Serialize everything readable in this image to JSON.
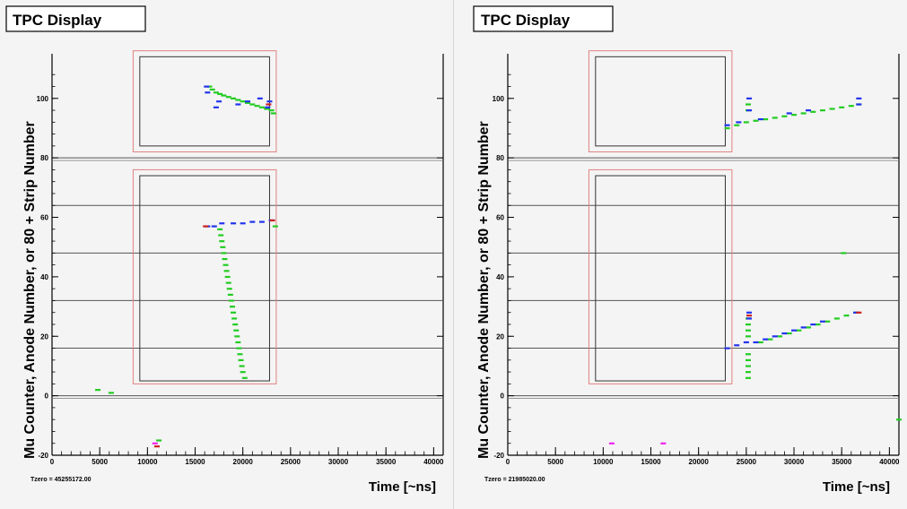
{
  "chart_data": [
    {
      "type": "scatter",
      "title": "TPC Display",
      "xlabel": "Time [~ns]",
      "ylabel": "Mu Counter, Anode Number, or 80 + Strip Number",
      "xlim": [
        0,
        41000
      ],
      "ylim": [
        -20,
        115
      ],
      "x_ticks": [
        0,
        5000,
        10000,
        15000,
        20000,
        25000,
        30000,
        35000,
        40000
      ],
      "y_ticks": [
        -20,
        0,
        20,
        40,
        60,
        80,
        100
      ],
      "reference_lines_y": [
        0,
        16,
        32,
        48,
        64,
        80
      ],
      "tzero_label": "Tzero = 45255172.00",
      "series": [
        {
          "color": "#22cc22",
          "points": [
            [
              4800,
              2
            ],
            [
              6200,
              1
            ],
            [
              11200,
              -15
            ],
            [
              20200,
              6
            ],
            [
              20000,
              8
            ],
            [
              19900,
              10
            ],
            [
              19800,
              12
            ],
            [
              19700,
              14
            ],
            [
              19600,
              16
            ],
            [
              19500,
              18
            ],
            [
              19400,
              20
            ],
            [
              19300,
              22
            ],
            [
              19200,
              24
            ],
            [
              19100,
              26
            ],
            [
              19000,
              28
            ],
            [
              18900,
              30
            ],
            [
              18800,
              32
            ],
            [
              18700,
              34
            ],
            [
              18600,
              36
            ],
            [
              18500,
              38
            ],
            [
              18400,
              40
            ],
            [
              18300,
              42
            ],
            [
              18200,
              44
            ],
            [
              18100,
              46
            ],
            [
              18000,
              48
            ],
            [
              17900,
              50
            ],
            [
              17800,
              52
            ],
            [
              17700,
              54
            ],
            [
              17600,
              56
            ],
            [
              16500,
              104
            ],
            [
              16800,
              103
            ],
            [
              17200,
              102
            ],
            [
              17600,
              101.5
            ],
            [
              18000,
              101
            ],
            [
              18500,
              100.5
            ],
            [
              19000,
              100
            ],
            [
              19500,
              99.5
            ],
            [
              20000,
              99
            ],
            [
              20500,
              98.5
            ],
            [
              21000,
              98
            ],
            [
              21500,
              97.5
            ],
            [
              22000,
              97
            ],
            [
              22500,
              96.5
            ],
            [
              23000,
              96
            ],
            [
              23200,
              95
            ],
            [
              23400,
              57
            ]
          ]
        },
        {
          "color": "#2233ee",
          "points": [
            [
              16300,
              57
            ],
            [
              17000,
              57
            ],
            [
              17800,
              58
            ],
            [
              19000,
              58
            ],
            [
              20000,
              58
            ],
            [
              21000,
              58.5
            ],
            [
              22000,
              58.5
            ],
            [
              23000,
              59
            ],
            [
              16200,
              104
            ],
            [
              16300,
              102
            ],
            [
              17500,
              99
            ],
            [
              19500,
              98
            ],
            [
              20500,
              99
            ],
            [
              21800,
              100
            ],
            [
              22800,
              99
            ],
            [
              22600,
              97
            ],
            [
              17200,
              97
            ]
          ]
        },
        {
          "color": "#cc2222",
          "points": [
            [
              16100,
              57
            ],
            [
              23100,
              59
            ],
            [
              22700,
              98
            ],
            [
              11000,
              -17
            ]
          ]
        },
        {
          "color": "#ee22ee",
          "points": [
            [
              10800,
              -16
            ]
          ]
        }
      ]
    },
    {
      "type": "scatter",
      "title": "TPC Display",
      "xlabel": "Time [~ns]",
      "ylabel": "Mu Counter, Anode Number, or 80 + Strip Number",
      "xlim": [
        0,
        41000
      ],
      "ylim": [
        -20,
        115
      ],
      "x_ticks": [
        0,
        5000,
        10000,
        15000,
        20000,
        25000,
        30000,
        35000,
        40000
      ],
      "y_ticks": [
        -20,
        0,
        20,
        40,
        60,
        80,
        100
      ],
      "reference_lines_y": [
        0,
        16,
        32,
        48,
        64,
        80
      ],
      "tzero_label": "Tzero = 21985020.00",
      "series": [
        {
          "color": "#22cc22",
          "points": [
            [
              25200,
              6
            ],
            [
              25200,
              8
            ],
            [
              25200,
              10
            ],
            [
              25200,
              12
            ],
            [
              25200,
              14
            ],
            [
              25200,
              20
            ],
            [
              25200,
              22
            ],
            [
              25200,
              24
            ],
            [
              25200,
              26
            ],
            [
              26500,
              18
            ],
            [
              27500,
              19
            ],
            [
              28500,
              20
            ],
            [
              29500,
              21
            ],
            [
              30500,
              22
            ],
            [
              31500,
              23
            ],
            [
              32500,
              24
            ],
            [
              33500,
              25
            ],
            [
              34500,
              26
            ],
            [
              35500,
              27
            ],
            [
              36500,
              28
            ],
            [
              35200,
              48
            ],
            [
              41000,
              -8
            ],
            [
              23000,
              90
            ],
            [
              24000,
              91
            ],
            [
              25000,
              92
            ],
            [
              26000,
              92.5
            ],
            [
              27000,
              93
            ],
            [
              28000,
              93.5
            ],
            [
              29000,
              94
            ],
            [
              30000,
              94.5
            ],
            [
              31000,
              95
            ],
            [
              32000,
              95.5
            ],
            [
              33000,
              96
            ],
            [
              34000,
              96.5
            ],
            [
              35000,
              97
            ],
            [
              36000,
              97.5
            ],
            [
              36800,
              98
            ],
            [
              25200,
              96
            ],
            [
              25200,
              98
            ]
          ]
        },
        {
          "color": "#2233ee",
          "points": [
            [
              23000,
              16
            ],
            [
              24000,
              17
            ],
            [
              25000,
              18
            ],
            [
              26000,
              18
            ],
            [
              27000,
              19
            ],
            [
              28000,
              20
            ],
            [
              29000,
              21
            ],
            [
              30000,
              22
            ],
            [
              31000,
              23
            ],
            [
              32000,
              24
            ],
            [
              33000,
              25
            ],
            [
              36500,
              28
            ],
            [
              25300,
              26
            ],
            [
              25300,
              28
            ],
            [
              23000,
              91
            ],
            [
              24200,
              92
            ],
            [
              25300,
              96
            ],
            [
              25300,
              100
            ],
            [
              26500,
              93
            ],
            [
              29500,
              95
            ],
            [
              31500,
              96
            ],
            [
              36800,
              100
            ],
            [
              36800,
              98
            ]
          ]
        },
        {
          "color": "#cc2222",
          "points": [
            [
              36800,
              28
            ],
            [
              25300,
              27
            ]
          ]
        },
        {
          "color": "#ee22ee",
          "points": [
            [
              10900,
              -16
            ],
            [
              16300,
              -16
            ]
          ]
        }
      ]
    }
  ]
}
